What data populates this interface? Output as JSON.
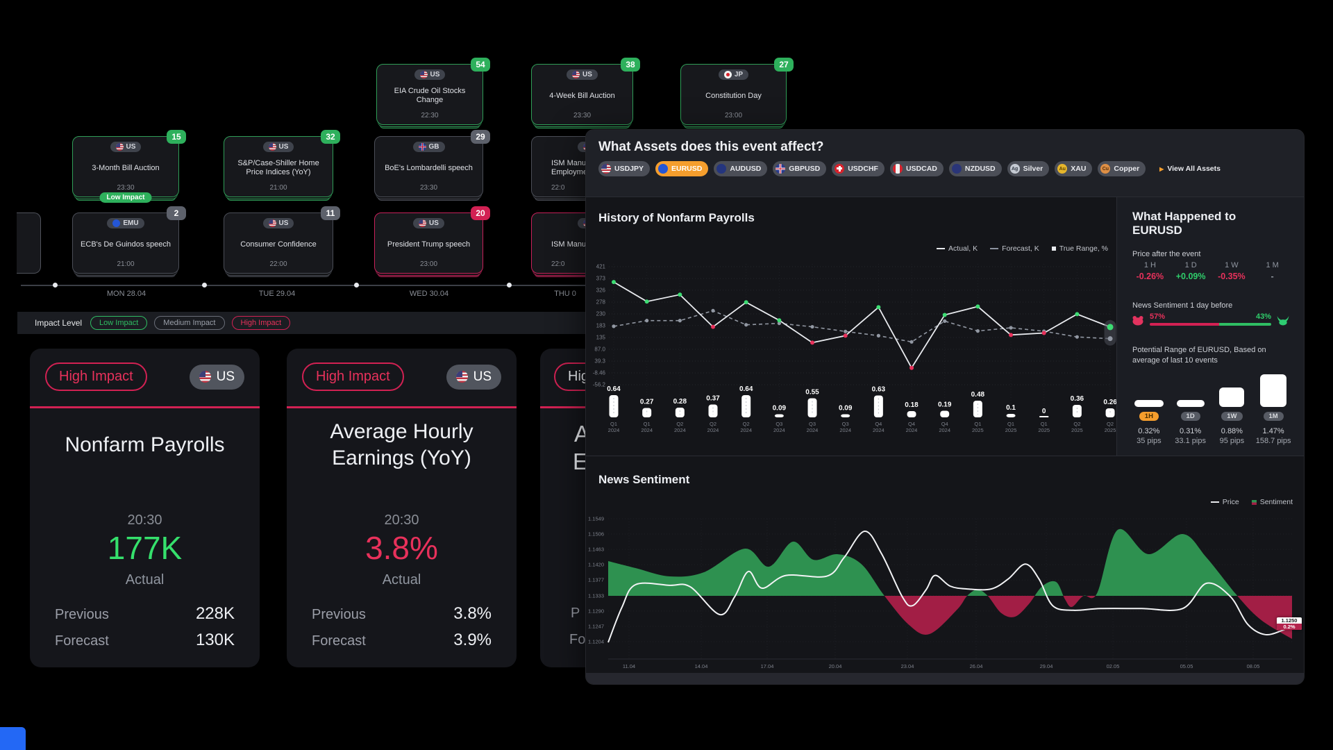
{
  "calendar": {
    "rows": [
      {
        "cards": [
          {
            "country": "US",
            "flag": "flag-us",
            "title_lines": [
              "EIA Crude Oil Stocks",
              "Change"
            ],
            "time": "22:30",
            "badge": "54",
            "style": "green"
          },
          {
            "country": "US",
            "flag": "flag-us",
            "title_lines": [
              "4-Week Bill Auction"
            ],
            "time": "23:30",
            "badge": "38",
            "style": "green"
          },
          {
            "country": "JP",
            "flag": "flag-jp",
            "title_lines": [
              "Constitution Day"
            ],
            "time": "23:00",
            "badge": "27",
            "style": "green"
          }
        ]
      },
      {
        "cards": [
          {
            "country": "US",
            "flag": "flag-us",
            "title_lines": [
              "3-Month Bill Auction"
            ],
            "time": "23:30",
            "badge": "15",
            "style": "green",
            "tag": "Low Impact"
          },
          {
            "country": "US",
            "flag": "flag-us",
            "title_lines": [
              "S&P/Case-Shiller Home",
              "Price Indices (YoY)"
            ],
            "time": "21:00",
            "badge": "32",
            "style": "green"
          },
          {
            "country": "GB",
            "flag": "flag-gb",
            "title_lines": [
              "BoE's Lombardelli speech"
            ],
            "time": "23:30",
            "badge": "29",
            "style": "gray"
          },
          {
            "country": "US",
            "flag": "flag-us",
            "title_lines": [
              "ISM Manuf",
              "Employme"
            ],
            "time": "22:0",
            "style": "gray",
            "clipped": true
          }
        ]
      },
      {
        "cards": [
          {
            "country": "EMU",
            "flag": "flag-eu",
            "title_lines": [
              "ECB's De Guindos speech"
            ],
            "time": "21:00",
            "badge": "2",
            "style": "gray"
          },
          {
            "country": "US",
            "flag": "flag-us",
            "title_lines": [
              "Consumer Confidence"
            ],
            "time": "22:00",
            "badge": "11",
            "style": "gray"
          },
          {
            "country": "US",
            "flag": "flag-us",
            "title_lines": [
              "President Trump speech"
            ],
            "time": "23:00",
            "badge": "20",
            "style": "red"
          },
          {
            "country": "US",
            "flag": "flag-us",
            "title_lines": [
              "ISM Manufac"
            ],
            "time": "22:0",
            "style": "red",
            "clipped": true
          }
        ]
      }
    ],
    "timeline": {
      "labels": [
        "MON 28.04",
        "TUE 29.04",
        "WED 30.04",
        "THU 0"
      ]
    },
    "impact_filter": {
      "label": "Impact Level",
      "options": [
        {
          "label": "Low Impact",
          "style": "green"
        },
        {
          "label": "Medium Impact",
          "style": "gray"
        },
        {
          "label": "High Impact",
          "style": "red"
        }
      ]
    }
  },
  "event_cards": [
    {
      "impact": "High Impact",
      "country": "US",
      "flag": "flag-us",
      "title_lines": [
        "Nonfarm Payrolls"
      ],
      "time": "20:30",
      "actual": "177K",
      "actual_style": "green",
      "actual_label": "Actual",
      "previous_label": "Previous",
      "previous": "228K",
      "forecast_label": "Forecast",
      "forecast": "130K"
    },
    {
      "impact": "High Impact",
      "country": "US",
      "flag": "flag-us",
      "title_lines": [
        "Average Hourly",
        "Earnings (YoY)"
      ],
      "time": "20:30",
      "actual": "3.8%",
      "actual_style": "red",
      "actual_label": "Actual",
      "previous_label": "Previous",
      "previous": "3.8%",
      "forecast_label": "Forecast",
      "forecast": "3.9%"
    },
    {
      "fragment": true,
      "impact": "Hig",
      "title_lines": [
        "A",
        "E"
      ],
      "previous_label": "P",
      "forecast_label": "Fo"
    }
  ],
  "panel": {
    "assets": {
      "title": "What Assets does this event affect?",
      "chips": [
        {
          "label": "USDJPY",
          "icon": "flag-us",
          "active": false
        },
        {
          "label": "EURUSD",
          "icon": "flag-eu",
          "active": true
        },
        {
          "label": "AUDUSD",
          "icon": "flag-au",
          "active": false
        },
        {
          "label": "GBPUSD",
          "icon": "flag-gb",
          "active": false
        },
        {
          "label": "USDCHF",
          "icon": "flag-ch",
          "active": false
        },
        {
          "label": "USDCAD",
          "icon": "flag-ca",
          "active": false
        },
        {
          "label": "NZDUSD",
          "icon": "flag-nz",
          "active": false
        },
        {
          "label": "Silver",
          "icon": "metal-ag",
          "icon_text": "Ag",
          "active": false
        },
        {
          "label": "XAU",
          "icon": "metal-au",
          "icon_text": "Au",
          "active": false
        },
        {
          "label": "Copper",
          "icon": "metal-cu",
          "icon_text": "Cu",
          "active": false
        }
      ],
      "view_all": "View All Assets"
    },
    "history": {
      "title": "History of Nonfarm Payrolls",
      "legend": [
        {
          "label": "Actual, K",
          "marker": "line"
        },
        {
          "label": "Forecast, K",
          "marker": "dash"
        },
        {
          "label": "True Range, %",
          "marker": "square"
        }
      ],
      "chart_data": {
        "type": "line+bar",
        "ylim": [
          -56.2,
          421
        ],
        "y_ticks": [
          "421",
          "373",
          "326",
          "278",
          "230",
          "183",
          "135",
          "87.0",
          "39.3",
          "-8.46",
          "-56.2"
        ],
        "x_labels": [
          [
            "Q1",
            "2024"
          ],
          [
            "Q1",
            "2024"
          ],
          [
            "Q2",
            "2024"
          ],
          [
            "Q2",
            "2024"
          ],
          [
            "Q2",
            "2024"
          ],
          [
            "Q3",
            "2024"
          ],
          [
            "Q3",
            "2024"
          ],
          [
            "Q3",
            "2024"
          ],
          [
            "Q4",
            "2024"
          ],
          [
            "Q4",
            "2024"
          ],
          [
            "Q4",
            "2024"
          ],
          [
            "Q1",
            "2025"
          ],
          [
            "Q1",
            "2025"
          ],
          [
            "Q1",
            "2025"
          ],
          [
            "Q2",
            "2025"
          ],
          [
            "Q2",
            "2025"
          ]
        ],
        "series": [
          {
            "name": "Actual, K",
            "values": [
              359,
              280,
              308,
              178,
              277,
              204,
              114,
              142,
              257,
              12,
              226,
              260,
              145,
              153,
              229,
              177
            ]
          },
          {
            "name": "Forecast, K",
            "values": [
              180,
              203,
              203,
              243,
              186,
              192,
              178,
              159,
              142,
              117,
              201,
              161,
              174,
              160,
              137,
              130
            ]
          },
          {
            "name": "True Range, %",
            "values": [
              0.64,
              0.27,
              0.28,
              0.37,
              0.64,
              0.09,
              0.55,
              0.09,
              0.63,
              0.18,
              0.19,
              0.48,
              0.1,
              0,
              0.36,
              0.26
            ]
          }
        ],
        "bar_labels": [
          "0.64",
          "0.27",
          "0.28",
          "0.37",
          "0.64",
          "0.09",
          "0.55",
          "0.09",
          "0.63",
          "0.18",
          "0.19",
          "0.48",
          "0.1",
          "0",
          "0.36",
          "0.26"
        ]
      }
    },
    "happened": {
      "title_lines": [
        "What Happened to",
        "EURUSD"
      ],
      "price_after": {
        "label": "Price after the event",
        "periods": [
          {
            "period": "1 H",
            "value": "-0.26%",
            "style": "red"
          },
          {
            "period": "1 D",
            "value": "+0.09%",
            "style": "green"
          },
          {
            "period": "1 W",
            "value": "-0.35%",
            "style": "red"
          },
          {
            "period": "1 M",
            "value": "-",
            "style": "gray"
          }
        ]
      },
      "news_sentiment": {
        "label": "News Sentiment 1 day before",
        "bear_value": "57%",
        "bull_value": "43%",
        "bear_pct": 57
      },
      "potential_range": {
        "label_lines": [
          "Potential Range of EURUSD, Based on",
          "average of last 10 events"
        ],
        "items": [
          {
            "period": "1H",
            "pct": "0.32%",
            "pips": "35 pips",
            "active": true
          },
          {
            "period": "1D",
            "pct": "0.31%",
            "pips": "33.1 pips",
            "active": false
          },
          {
            "period": "1W",
            "pct": "0.88%",
            "pips": "95 pips",
            "active": false
          },
          {
            "period": "1M",
            "pct": "1.47%",
            "pips": "158.7 pips",
            "active": false
          }
        ]
      }
    },
    "sentiment": {
      "title": "News Sentiment",
      "legend": [
        {
          "label": "Price",
          "marker": "line"
        },
        {
          "label": "Sentiment",
          "marker": "square-duo"
        }
      ],
      "price_tag": {
        "price": "1.1250",
        "change": "0.2%"
      },
      "chart_data": {
        "type": "area+line",
        "y_ticks": [
          "1.1549",
          "1.1506",
          "1.1463",
          "1.1420",
          "1.1377",
          "1.1333",
          "1.1290",
          "1.1247",
          "1.1204"
        ],
        "x_ticks": [
          "11.04",
          "14.04",
          "17.04",
          "20.04",
          "23.04",
          "26.04",
          "29.04",
          "02.05",
          "05.05",
          "08.05"
        ],
        "baseline": 1.1333,
        "sentiment_points": [
          [
            0,
            50
          ],
          [
            0.04,
            40
          ],
          [
            0.09,
            28
          ],
          [
            0.14,
            34
          ],
          [
            0.2,
            68
          ],
          [
            0.235,
            42
          ],
          [
            0.27,
            78
          ],
          [
            0.3,
            52
          ],
          [
            0.335,
            60
          ],
          [
            0.37,
            46
          ],
          [
            0.404,
            0
          ],
          [
            0.44,
            -42
          ],
          [
            0.47,
            -55
          ],
          [
            0.51,
            -20
          ],
          [
            0.525,
            0
          ],
          [
            0.54,
            9
          ],
          [
            0.555,
            0
          ],
          [
            0.575,
            -25
          ],
          [
            0.595,
            -30
          ],
          [
            0.615,
            -12
          ],
          [
            0.635,
            14
          ],
          [
            0.655,
            20
          ],
          [
            0.668,
            -5
          ],
          [
            0.678,
            -16
          ],
          [
            0.695,
            0
          ],
          [
            0.715,
            4
          ],
          [
            0.745,
            95
          ],
          [
            0.79,
            60
          ],
          [
            0.84,
            89
          ],
          [
            0.875,
            55
          ],
          [
            0.92,
            0
          ],
          [
            0.955,
            -35
          ],
          [
            1,
            -62
          ]
        ],
        "price_points": [
          [
            0,
            1.1202
          ],
          [
            0.02,
            1.13
          ],
          [
            0.04,
            1.1364
          ],
          [
            0.09,
            1.1362
          ],
          [
            0.12,
            1.1358
          ],
          [
            0.163,
            1.128
          ],
          [
            0.185,
            1.133
          ],
          [
            0.205,
            1.1401
          ],
          [
            0.225,
            1.1354
          ],
          [
            0.26,
            1.139
          ],
          [
            0.32,
            1.1388
          ],
          [
            0.345,
            1.144
          ],
          [
            0.375,
            1.1514
          ],
          [
            0.4,
            1.145
          ],
          [
            0.43,
            1.133
          ],
          [
            0.445,
            1.1305
          ],
          [
            0.465,
            1.135
          ],
          [
            0.478,
            1.139
          ],
          [
            0.5,
            1.136
          ],
          [
            0.525,
            1.1352
          ],
          [
            0.56,
            1.1352
          ],
          [
            0.585,
            1.138
          ],
          [
            0.61,
            1.1422
          ],
          [
            0.63,
            1.138
          ],
          [
            0.65,
            1.1305
          ],
          [
            0.68,
            1.1292
          ],
          [
            0.72,
            1.1297
          ],
          [
            0.78,
            1.1297
          ],
          [
            0.84,
            1.1297
          ],
          [
            0.875,
            1.1368
          ],
          [
            0.91,
            1.133
          ],
          [
            0.935,
            1.1253
          ],
          [
            0.96,
            1.1224
          ],
          [
            0.985,
            1.1235
          ],
          [
            1,
            1.125
          ]
        ]
      }
    }
  },
  "colors": {
    "green": "#2fbe63",
    "red": "#d22153",
    "orange": "#f59e2d"
  }
}
